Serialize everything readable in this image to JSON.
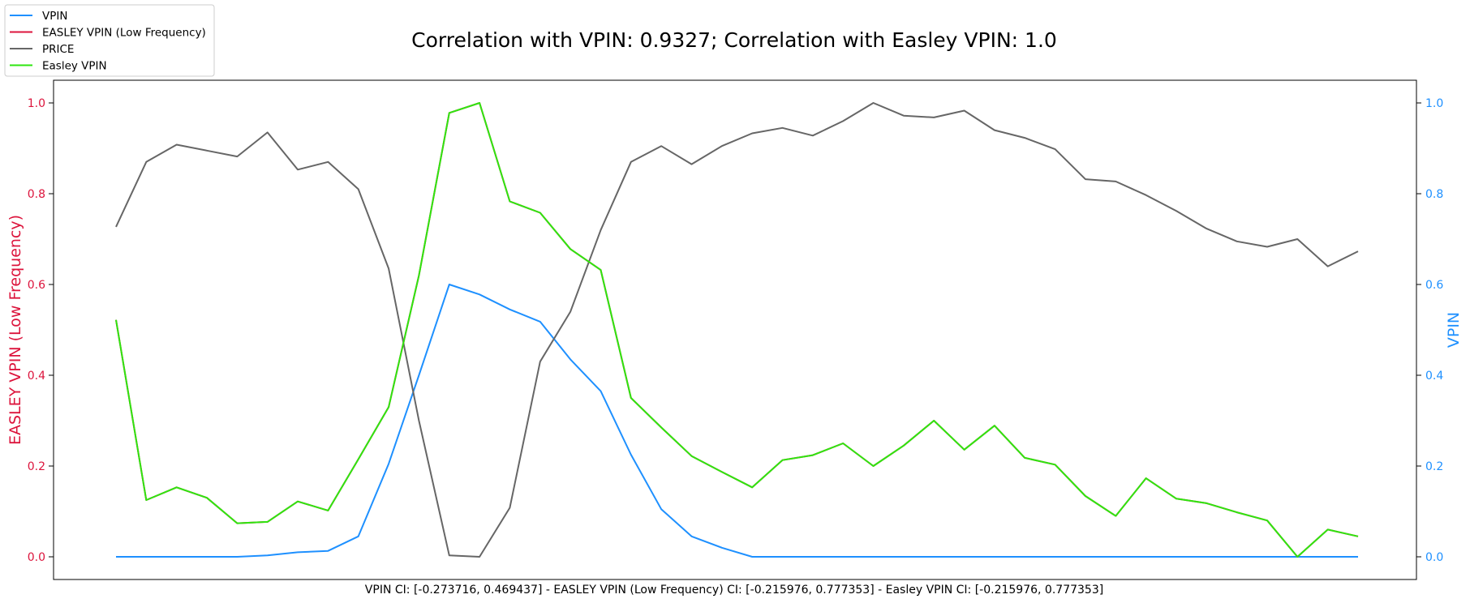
{
  "chart_data": {
    "type": "line",
    "title": "Correlation with VPIN: 0.9327; Correlation with Easley VPIN: 1.0",
    "xlabel": "VPIN CI: [-0.273716, 0.469437] - EASLEY VPIN (Low Frequency) CI: [-0.215976, 0.777353] - Easley VPIN CI: [-0.215976, 0.777353]",
    "ylabel_left": "EASLEY VPIN (Low Frequency)",
    "ylabel_right": "VPIN",
    "ylim": [
      -0.05,
      1.05
    ],
    "yticks": [
      0.0,
      0.2,
      0.4,
      0.6,
      0.8,
      1.0
    ],
    "ytick_labels": [
      "0.0",
      "0.2",
      "0.4",
      "0.6",
      "0.8",
      "1.0"
    ],
    "colors": {
      "left_axis": "#dc143c",
      "right_axis": "#1e90ff"
    },
    "legend": {
      "location": "top-left",
      "entries": [
        "VPIN",
        "EASLEY VPIN (Low Frequency)",
        "PRICE",
        "Easley VPIN"
      ]
    },
    "x": [
      0,
      1,
      2,
      3,
      4,
      5,
      6,
      7,
      8,
      9,
      10,
      11,
      12,
      13,
      14,
      15,
      16,
      17,
      18,
      19,
      20,
      21,
      22,
      23,
      24,
      25,
      26,
      27,
      28,
      29,
      30,
      31,
      32,
      33,
      34,
      35,
      36,
      37,
      38,
      39,
      40,
      41
    ],
    "series": [
      {
        "name": "VPIN",
        "color": "#1e90ff",
        "values": [
          0,
          0,
          0,
          0,
          0,
          0.003,
          0.01,
          0.013,
          0.045,
          0.205,
          0.4,
          0.6,
          0.578,
          0.545,
          0.518,
          0.435,
          0.365,
          0.225,
          0.105,
          0.045,
          0.02,
          0,
          0,
          0,
          0,
          0,
          0,
          0,
          0,
          0,
          0,
          0,
          0,
          0,
          0,
          0,
          0,
          0,
          0,
          0,
          0,
          0
        ]
      },
      {
        "name": "EASLEY VPIN (Low Frequency)",
        "color": "#dc143c",
        "values": [
          0.522,
          0.125,
          0.153,
          0.13,
          0.074,
          0.077,
          0.122,
          0.102,
          0.215,
          0.33,
          0.62,
          0.978,
          1.0,
          0.783,
          0.758,
          0.678,
          0.632,
          0.35,
          0.285,
          0.222,
          0.187,
          0.153,
          0.213,
          0.224,
          0.25,
          0.2,
          0.245,
          0.3,
          0.236,
          0.289,
          0.218,
          0.203,
          0.134,
          0.09,
          0.173,
          0.128,
          0.118,
          0.098,
          0.08,
          0.0,
          0.06,
          0.045
        ]
      },
      {
        "name": "PRICE",
        "color": "#666666",
        "values": [
          0.727,
          0.87,
          0.908,
          0.895,
          0.882,
          0.935,
          0.853,
          0.87,
          0.81,
          0.635,
          0.3,
          0.003,
          0.0,
          0.108,
          0.43,
          0.54,
          0.72,
          0.87,
          0.905,
          0.865,
          0.905,
          0.933,
          0.945,
          0.928,
          0.96,
          1.0,
          0.972,
          0.968,
          0.983,
          0.94,
          0.923,
          0.898,
          0.832,
          0.827,
          0.797,
          0.762,
          0.723,
          0.695,
          0.683,
          0.7,
          0.64,
          0.673
        ]
      },
      {
        "name": "Easley VPIN",
        "color": "#2ee60f",
        "values": [
          0.522,
          0.125,
          0.153,
          0.13,
          0.074,
          0.077,
          0.122,
          0.102,
          0.215,
          0.33,
          0.62,
          0.978,
          1.0,
          0.783,
          0.758,
          0.678,
          0.632,
          0.35,
          0.285,
          0.222,
          0.187,
          0.153,
          0.213,
          0.224,
          0.25,
          0.2,
          0.245,
          0.3,
          0.236,
          0.289,
          0.218,
          0.203,
          0.134,
          0.09,
          0.173,
          0.128,
          0.118,
          0.098,
          0.08,
          0.0,
          0.06,
          0.045
        ]
      }
    ]
  }
}
